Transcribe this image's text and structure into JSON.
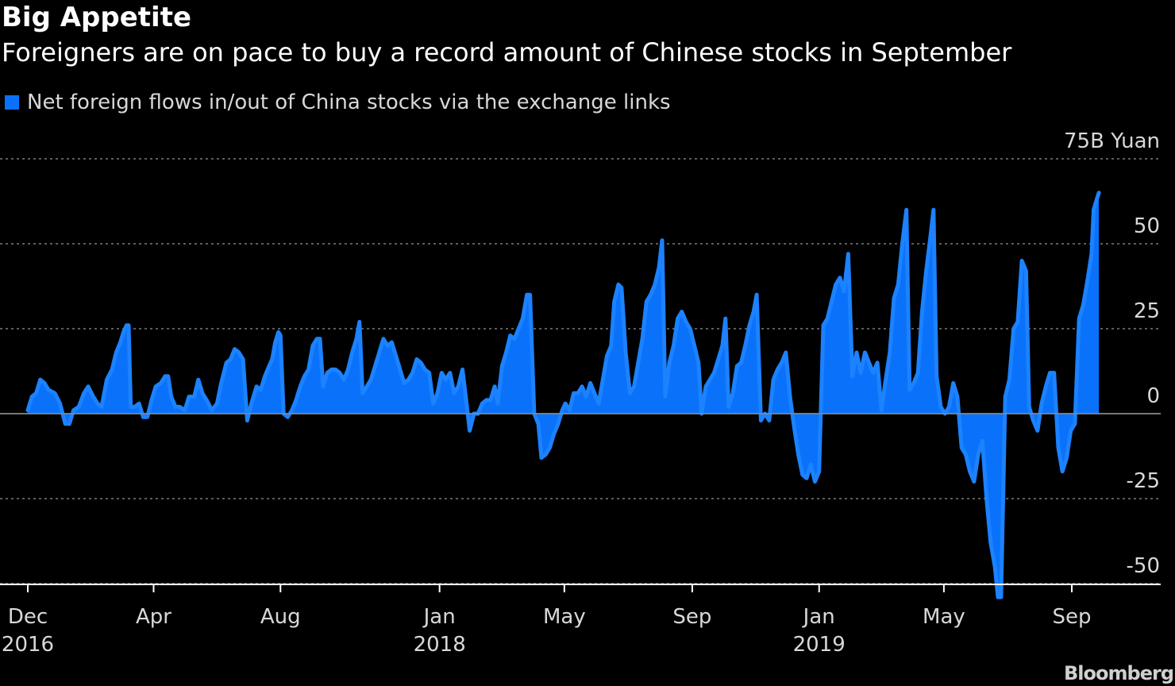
{
  "header": {
    "title": "Big Appetite",
    "subtitle": "Foreigners are on pace to buy a record amount of Chinese stocks in September"
  },
  "brand": "Bloomberg",
  "colors": {
    "background": "#000000",
    "series": "#0a72fa",
    "grid": "#7a7a7a",
    "text": "#d8d8d8"
  },
  "chart_data": {
    "type": "area",
    "title": "Big Appetite",
    "subtitle": "Foreigners are on pace to buy a record amount of Chinese stocks in September",
    "xlabel": "",
    "ylabel": "",
    "unit": "B Yuan",
    "ylim": [
      -55,
      75
    ],
    "yticks": [
      75,
      50,
      25,
      0,
      -25,
      -50
    ],
    "ytick_labels": [
      "75B Yuan",
      "50",
      "25",
      "0",
      "-25",
      "-50"
    ],
    "grid": true,
    "legend": "top-left",
    "xticks": [
      {
        "date": "2016-12-01",
        "month": "Dec",
        "year": "2016"
      },
      {
        "date": "2017-04-01",
        "month": "Apr",
        "year": ""
      },
      {
        "date": "2017-08-01",
        "month": "Aug",
        "year": ""
      },
      {
        "date": "2018-01-01",
        "month": "Jan",
        "year": "2018"
      },
      {
        "date": "2018-05-01",
        "month": "May",
        "year": ""
      },
      {
        "date": "2018-09-01",
        "month": "Sep",
        "year": ""
      },
      {
        "date": "2019-01-01",
        "month": "Jan",
        "year": "2019"
      },
      {
        "date": "2019-05-01",
        "month": "May",
        "year": ""
      },
      {
        "date": "2019-09-01",
        "month": "Sep",
        "year": ""
      }
    ],
    "series": [
      {
        "name": "Net foreign flows in/out of China stocks via the exchange links",
        "points": [
          [
            "2016-12-01",
            1
          ],
          [
            "2016-12-05",
            5
          ],
          [
            "2016-12-09",
            6
          ],
          [
            "2016-12-13",
            10
          ],
          [
            "2016-12-17",
            9
          ],
          [
            "2016-12-21",
            7
          ],
          [
            "2016-12-27",
            6
          ],
          [
            "2017-01-01",
            3
          ],
          [
            "2017-01-06",
            -3
          ],
          [
            "2017-01-10",
            -3
          ],
          [
            "2017-01-14",
            1
          ],
          [
            "2017-01-19",
            2
          ],
          [
            "2017-01-24",
            6
          ],
          [
            "2017-01-28",
            8
          ],
          [
            "2017-02-02",
            5
          ],
          [
            "2017-02-06",
            3
          ],
          [
            "2017-02-10",
            2
          ],
          [
            "2017-02-15",
            10
          ],
          [
            "2017-02-20",
            13
          ],
          [
            "2017-02-24",
            18
          ],
          [
            "2017-02-28",
            21
          ],
          [
            "2017-03-03",
            24
          ],
          [
            "2017-03-06",
            26
          ],
          [
            "2017-03-08",
            26
          ],
          [
            "2017-03-10",
            2
          ],
          [
            "2017-03-14",
            2
          ],
          [
            "2017-03-18",
            3
          ],
          [
            "2017-03-22",
            -1
          ],
          [
            "2017-03-26",
            -1
          ],
          [
            "2017-03-30",
            4
          ],
          [
            "2017-04-03",
            8
          ],
          [
            "2017-04-08",
            9
          ],
          [
            "2017-04-12",
            11
          ],
          [
            "2017-04-15",
            11
          ],
          [
            "2017-04-18",
            5
          ],
          [
            "2017-04-22",
            2
          ],
          [
            "2017-04-26",
            2
          ],
          [
            "2017-05-01",
            1
          ],
          [
            "2017-05-05",
            5
          ],
          [
            "2017-05-10",
            5
          ],
          [
            "2017-05-14",
            10
          ],
          [
            "2017-05-18",
            6
          ],
          [
            "2017-05-22",
            4
          ],
          [
            "2017-05-27",
            1
          ],
          [
            "2017-06-01",
            3
          ],
          [
            "2017-06-05",
            9
          ],
          [
            "2017-06-10",
            15
          ],
          [
            "2017-06-14",
            16
          ],
          [
            "2017-06-18",
            19
          ],
          [
            "2017-06-22",
            18
          ],
          [
            "2017-06-26",
            16
          ],
          [
            "2017-06-30",
            -2
          ],
          [
            "2017-07-04",
            3
          ],
          [
            "2017-07-09",
            8
          ],
          [
            "2017-07-13",
            7
          ],
          [
            "2017-07-17",
            11
          ],
          [
            "2017-07-21",
            14
          ],
          [
            "2017-07-24",
            16
          ],
          [
            "2017-07-27",
            21
          ],
          [
            "2017-07-30",
            24
          ],
          [
            "2017-08-01",
            23
          ],
          [
            "2017-08-04",
            0
          ],
          [
            "2017-08-08",
            -1
          ],
          [
            "2017-08-12",
            1
          ],
          [
            "2017-08-16",
            4
          ],
          [
            "2017-08-20",
            8
          ],
          [
            "2017-08-24",
            11
          ],
          [
            "2017-08-28",
            13
          ],
          [
            "2017-09-01",
            20
          ],
          [
            "2017-09-05",
            22
          ],
          [
            "2017-09-08",
            22
          ],
          [
            "2017-09-11",
            8
          ],
          [
            "2017-09-15",
            12
          ],
          [
            "2017-09-19",
            13
          ],
          [
            "2017-09-23",
            13
          ],
          [
            "2017-09-27",
            12
          ],
          [
            "2017-10-01",
            10
          ],
          [
            "2017-10-05",
            13
          ],
          [
            "2017-10-09",
            18
          ],
          [
            "2017-10-13",
            22
          ],
          [
            "2017-10-16",
            27
          ],
          [
            "2017-10-19",
            6
          ],
          [
            "2017-10-23",
            8
          ],
          [
            "2017-10-27",
            10
          ],
          [
            "2017-10-31",
            14
          ],
          [
            "2017-11-04",
            18
          ],
          [
            "2017-11-08",
            22
          ],
          [
            "2017-11-12",
            20
          ],
          [
            "2017-11-16",
            21
          ],
          [
            "2017-11-20",
            17
          ],
          [
            "2017-11-24",
            13
          ],
          [
            "2017-11-28",
            9
          ],
          [
            "2017-12-02",
            10
          ],
          [
            "2017-12-06",
            12
          ],
          [
            "2017-12-10",
            16
          ],
          [
            "2017-12-14",
            15
          ],
          [
            "2017-12-18",
            13
          ],
          [
            "2017-12-22",
            12
          ],
          [
            "2017-12-26",
            3
          ],
          [
            "2017-12-30",
            6
          ],
          [
            "2018-01-03",
            12
          ],
          [
            "2018-01-07",
            10
          ],
          [
            "2018-01-11",
            12
          ],
          [
            "2018-01-15",
            6
          ],
          [
            "2018-01-19",
            8
          ],
          [
            "2018-01-23",
            13
          ],
          [
            "2018-01-27",
            3
          ],
          [
            "2018-01-30",
            -5
          ],
          [
            "2018-02-03",
            0
          ],
          [
            "2018-02-07",
            0
          ],
          [
            "2018-02-11",
            3
          ],
          [
            "2018-02-15",
            4
          ],
          [
            "2018-02-19",
            4
          ],
          [
            "2018-02-23",
            8
          ],
          [
            "2018-02-26",
            3
          ],
          [
            "2018-03-02",
            14
          ],
          [
            "2018-03-06",
            18
          ],
          [
            "2018-03-10",
            23
          ],
          [
            "2018-03-14",
            22
          ],
          [
            "2018-03-18",
            25
          ],
          [
            "2018-03-22",
            28
          ],
          [
            "2018-03-26",
            35
          ],
          [
            "2018-03-29",
            35
          ],
          [
            "2018-04-02",
            0
          ],
          [
            "2018-04-06",
            -3
          ],
          [
            "2018-04-09",
            -13
          ],
          [
            "2018-04-13",
            -12
          ],
          [
            "2018-04-17",
            -10
          ],
          [
            "2018-04-21",
            -6
          ],
          [
            "2018-04-25",
            -3
          ],
          [
            "2018-04-29",
            1
          ],
          [
            "2018-05-02",
            3
          ],
          [
            "2018-05-06",
            1
          ],
          [
            "2018-05-10",
            6
          ],
          [
            "2018-05-14",
            6
          ],
          [
            "2018-05-18",
            8
          ],
          [
            "2018-05-22",
            5
          ],
          [
            "2018-05-26",
            9
          ],
          [
            "2018-05-30",
            6
          ],
          [
            "2018-06-03",
            3
          ],
          [
            "2018-06-07",
            10
          ],
          [
            "2018-06-11",
            17
          ],
          [
            "2018-06-15",
            20
          ],
          [
            "2018-06-18",
            33
          ],
          [
            "2018-06-22",
            38
          ],
          [
            "2018-06-25",
            37
          ],
          [
            "2018-06-29",
            18
          ],
          [
            "2018-07-03",
            6
          ],
          [
            "2018-07-07",
            8
          ],
          [
            "2018-07-11",
            15
          ],
          [
            "2018-07-15",
            22
          ],
          [
            "2018-07-19",
            33
          ],
          [
            "2018-07-23",
            35
          ],
          [
            "2018-07-27",
            38
          ],
          [
            "2018-07-31",
            43
          ],
          [
            "2018-08-03",
            51
          ],
          [
            "2018-08-06",
            5
          ],
          [
            "2018-08-10",
            15
          ],
          [
            "2018-08-14",
            20
          ],
          [
            "2018-08-18",
            28
          ],
          [
            "2018-08-22",
            30
          ],
          [
            "2018-08-26",
            27
          ],
          [
            "2018-08-30",
            25
          ],
          [
            "2018-09-03",
            20
          ],
          [
            "2018-09-07",
            15
          ],
          [
            "2018-09-10",
            0
          ],
          [
            "2018-09-14",
            8
          ],
          [
            "2018-09-18",
            10
          ],
          [
            "2018-09-22",
            12
          ],
          [
            "2018-09-26",
            16
          ],
          [
            "2018-09-30",
            20
          ],
          [
            "2018-10-03",
            28
          ],
          [
            "2018-10-06",
            2
          ],
          [
            "2018-10-10",
            6
          ],
          [
            "2018-10-14",
            14
          ],
          [
            "2018-10-18",
            15
          ],
          [
            "2018-10-22",
            20
          ],
          [
            "2018-10-26",
            26
          ],
          [
            "2018-10-30",
            30
          ],
          [
            "2018-11-02",
            35
          ],
          [
            "2018-11-06",
            -2
          ],
          [
            "2018-11-10",
            0
          ],
          [
            "2018-11-14",
            -2
          ],
          [
            "2018-11-18",
            10
          ],
          [
            "2018-11-22",
            13
          ],
          [
            "2018-11-26",
            15
          ],
          [
            "2018-11-30",
            18
          ],
          [
            "2018-12-04",
            5
          ],
          [
            "2018-12-08",
            -4
          ],
          [
            "2018-12-12",
            -12
          ],
          [
            "2018-12-16",
            -18
          ],
          [
            "2018-12-20",
            -19
          ],
          [
            "2018-12-24",
            -15
          ],
          [
            "2018-12-28",
            -20
          ],
          [
            "2019-01-01",
            -17
          ],
          [
            "2019-01-05",
            26
          ],
          [
            "2019-01-09",
            28
          ],
          [
            "2019-01-13",
            33
          ],
          [
            "2019-01-17",
            38
          ],
          [
            "2019-01-21",
            40
          ],
          [
            "2019-01-25",
            36
          ],
          [
            "2019-01-29",
            47
          ],
          [
            "2019-02-02",
            11
          ],
          [
            "2019-02-06",
            18
          ],
          [
            "2019-02-10",
            12
          ],
          [
            "2019-02-14",
            18
          ],
          [
            "2019-02-18",
            15
          ],
          [
            "2019-02-22",
            12
          ],
          [
            "2019-02-26",
            15
          ],
          [
            "2019-03-02",
            1
          ],
          [
            "2019-03-06",
            10
          ],
          [
            "2019-03-10",
            18
          ],
          [
            "2019-03-14",
            34
          ],
          [
            "2019-03-18",
            38
          ],
          [
            "2019-03-22",
            50
          ],
          [
            "2019-03-26",
            60
          ],
          [
            "2019-03-29",
            7
          ],
          [
            "2019-04-02",
            9
          ],
          [
            "2019-04-06",
            12
          ],
          [
            "2019-04-10",
            30
          ],
          [
            "2019-04-14",
            42
          ],
          [
            "2019-04-18",
            52
          ],
          [
            "2019-04-21",
            60
          ],
          [
            "2019-04-24",
            11
          ],
          [
            "2019-04-28",
            2
          ],
          [
            "2019-05-02",
            0
          ],
          [
            "2019-05-06",
            2
          ],
          [
            "2019-05-10",
            9
          ],
          [
            "2019-05-14",
            5
          ],
          [
            "2019-05-18",
            -10
          ],
          [
            "2019-05-22",
            -12
          ],
          [
            "2019-05-26",
            -17
          ],
          [
            "2019-05-30",
            -20
          ],
          [
            "2019-06-03",
            -12
          ],
          [
            "2019-06-07",
            -8
          ],
          [
            "2019-06-11",
            -25
          ],
          [
            "2019-06-15",
            -38
          ],
          [
            "2019-06-19",
            -45
          ],
          [
            "2019-06-22",
            -54
          ],
          [
            "2019-06-25",
            -54
          ],
          [
            "2019-06-29",
            5
          ],
          [
            "2019-07-03",
            10
          ],
          [
            "2019-07-07",
            25
          ],
          [
            "2019-07-11",
            27
          ],
          [
            "2019-07-15",
            45
          ],
          [
            "2019-07-19",
            42
          ],
          [
            "2019-07-22",
            2
          ],
          [
            "2019-07-26",
            -2
          ],
          [
            "2019-07-30",
            -5
          ],
          [
            "2019-08-03",
            3
          ],
          [
            "2019-08-07",
            8
          ],
          [
            "2019-08-11",
            12
          ],
          [
            "2019-08-15",
            12
          ],
          [
            "2019-08-19",
            -10
          ],
          [
            "2019-08-23",
            -17
          ],
          [
            "2019-08-27",
            -13
          ],
          [
            "2019-08-31",
            -5
          ],
          [
            "2019-09-04",
            -3
          ],
          [
            "2019-09-08",
            28
          ],
          [
            "2019-09-12",
            32
          ],
          [
            "2019-09-16",
            39
          ],
          [
            "2019-09-20",
            47
          ],
          [
            "2019-09-22",
            60
          ],
          [
            "2019-09-26",
            64
          ],
          [
            "2019-09-27",
            65
          ]
        ]
      }
    ]
  }
}
